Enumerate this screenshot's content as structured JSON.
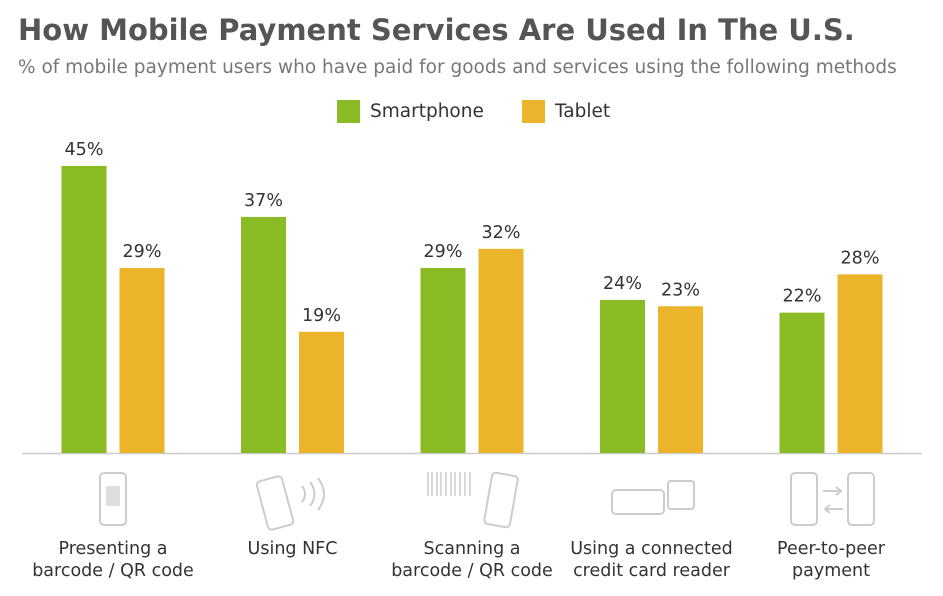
{
  "chart_data": {
    "type": "bar",
    "title": "How Mobile Payment Services Are Used In The U.S.",
    "subtitle": "% of mobile payment users who have paid for goods and services using the following methods",
    "categories": [
      "Presenting a\nbarcode / QR code",
      "Using NFC",
      "Scanning a\nbarcode / QR code",
      "Using a connected\ncredit card reader",
      "Peer-to-peer\npayment"
    ],
    "series": [
      {
        "name": "Smartphone",
        "color": "#8aba24",
        "values": [
          45,
          37,
          29,
          24,
          22
        ],
        "value_labels": [
          "45%",
          "37%",
          "29%",
          "24%",
          "22%"
        ]
      },
      {
        "name": "Tablet",
        "color": "#ebb42a",
        "values": [
          29,
          19,
          32,
          23,
          28
        ],
        "value_labels": [
          "29%",
          "19%",
          "32%",
          "23%",
          "28%"
        ]
      }
    ]
  }
}
